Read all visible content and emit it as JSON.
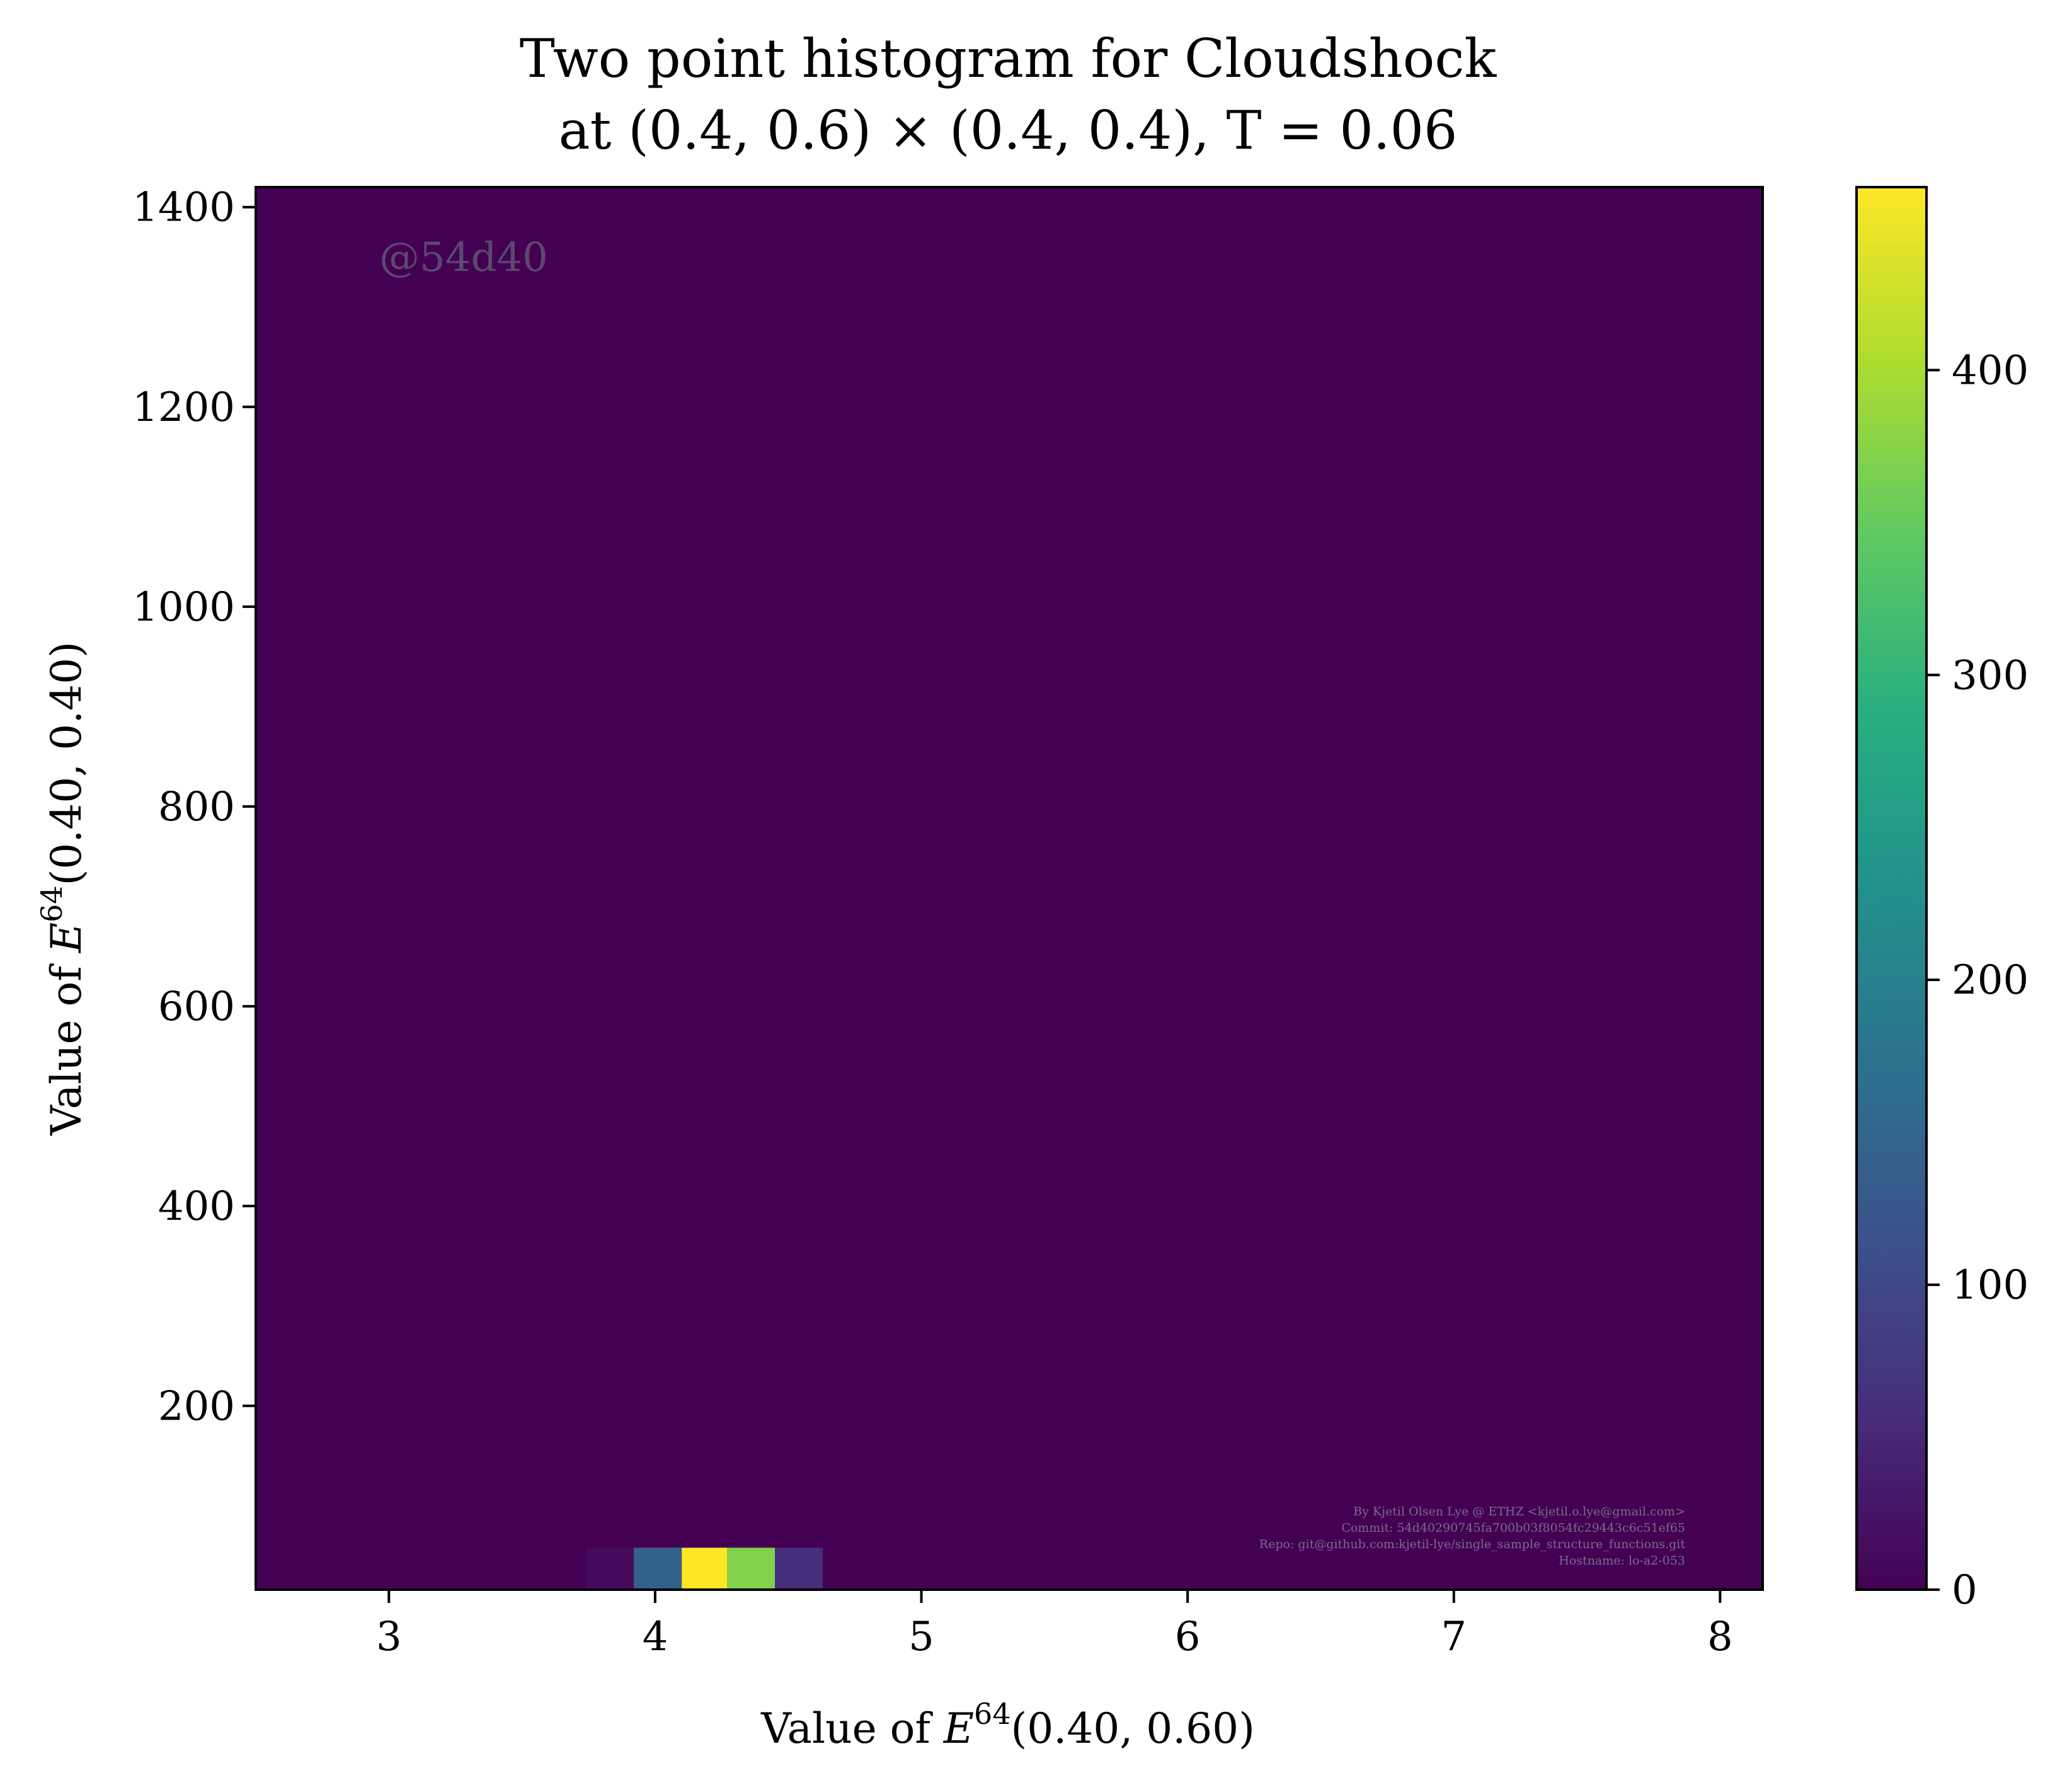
{
  "chart_data": {
    "type": "heatmap",
    "title": {
      "line1": "Two point histogram for Cloudshock",
      "line2": "at (0.4, 0.6) × (0.4, 0.4), T = 0.06"
    },
    "xlabel": {
      "prefix": "Value of ",
      "var": "E",
      "sup": "64",
      "suffix": "(0.40, 0.60)"
    },
    "ylabel": {
      "prefix": "Value of ",
      "var": "E",
      "sup": "64",
      "suffix": "(0.40, 0.40)"
    },
    "xlim": [
      2.5,
      8.16
    ],
    "ylim": [
      16,
      1420
    ],
    "x_ticks": [
      3,
      4,
      5,
      6,
      7,
      8
    ],
    "y_ticks": [
      200,
      400,
      600,
      800,
      1000,
      1200,
      1400
    ],
    "colorbar": {
      "colormap": "viridis",
      "range": [
        0,
        460
      ],
      "ticks": [
        0,
        100,
        200,
        300,
        400
      ]
    },
    "background_value": 0,
    "cells": [
      {
        "x0": 3.74,
        "x1": 3.92,
        "y0": 16,
        "y1": 58,
        "value": 12
      },
      {
        "x0": 3.92,
        "x1": 4.1,
        "y0": 16,
        "y1": 58,
        "value": 140
      },
      {
        "x0": 4.1,
        "x1": 4.27,
        "y0": 16,
        "y1": 58,
        "value": 460
      },
      {
        "x0": 4.27,
        "x1": 4.45,
        "y0": 16,
        "y1": 58,
        "value": 370
      },
      {
        "x0": 4.45,
        "x1": 4.63,
        "y0": 16,
        "y1": 58,
        "value": 60
      }
    ],
    "watermark": "@54d40",
    "credits": [
      "By Kjetil Olsen Lye @ ETHZ <kjetil.o.lye@gmail.com>",
      "Commit: 54d40290745fa700b03f8054fc29443c6c51ef65",
      "Repo: git@github.com:kjetil-lye/single_sample_structure_functions.git",
      "Hostname: lo-a2-053"
    ]
  }
}
